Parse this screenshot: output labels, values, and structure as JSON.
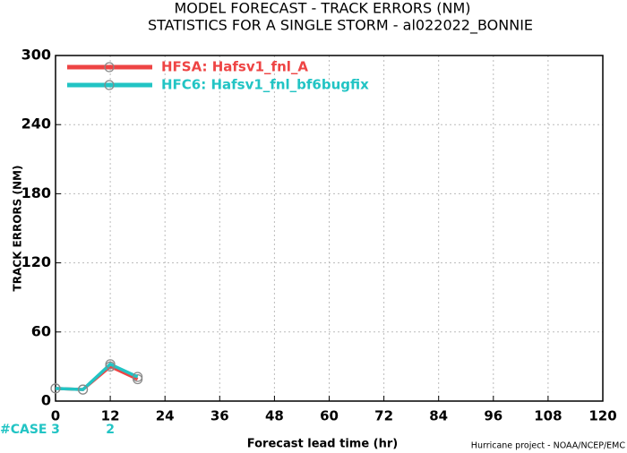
{
  "chart_data": {
    "type": "line",
    "title": "MODEL FORECAST - TRACK ERRORS (NM)",
    "subtitle": "STATISTICS FOR A SINGLE STORM - al022022_BONNIE",
    "x_label": "Forecast lead time (hr)",
    "y_label": "TRACK ERRORS (NM)",
    "credit": "Hurricane project - NOAA/NCEP/EMC",
    "case_label": "#CASE",
    "case_x": [
      0,
      12
    ],
    "cases": [
      3,
      2
    ],
    "x": [
      0,
      6,
      12,
      18
    ],
    "series": [
      {
        "name": "HFSA: Hafsv1_fnl_A",
        "color": "#ee4444",
        "values": [
          11,
          10,
          30,
          19
        ]
      },
      {
        "name": "HFC6: Hafsv1_fnl_bf6bugfix",
        "color": "#22c4c4",
        "values": [
          11,
          10,
          32,
          21
        ]
      }
    ],
    "xlim": [
      0,
      120
    ],
    "xticks": [
      0,
      12,
      24,
      36,
      48,
      60,
      72,
      84,
      96,
      108,
      120
    ],
    "ylim": [
      0,
      300
    ],
    "yticks": [
      0,
      60,
      120,
      180,
      240,
      300
    ],
    "grid": true,
    "legend": "top-left"
  }
}
